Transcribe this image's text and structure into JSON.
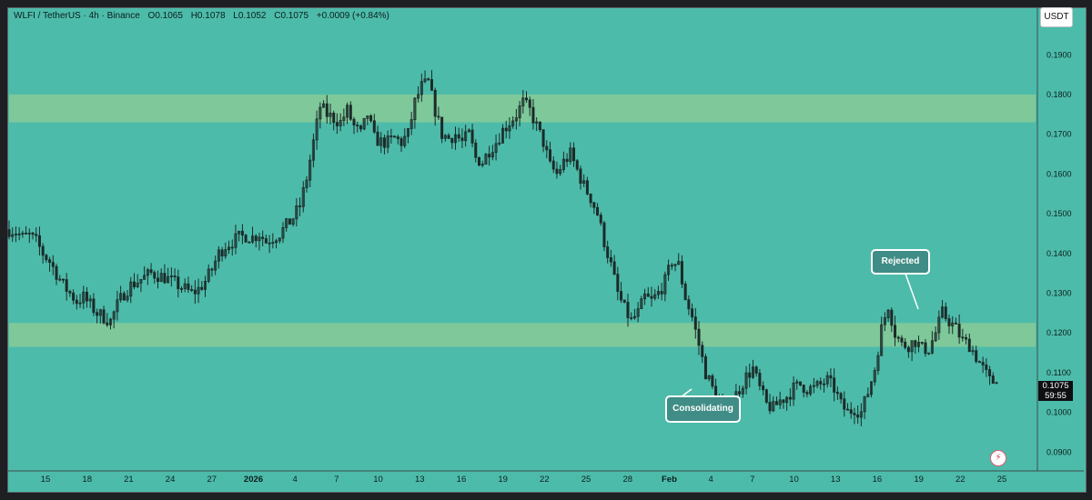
{
  "header": {
    "symbol": "WLFI / TetherUS · 4h · Binance",
    "open": "O0.1065",
    "high": "H0.1078",
    "low": "L0.1052",
    "close": "C0.1075",
    "change": "+0.0009 (+0.84%)"
  },
  "currency_button": "USDT",
  "price_badge": {
    "price": "0.1075",
    "countdown": "59:55"
  },
  "callouts": {
    "rejected": "Rejected",
    "consolidating": "Consolidating"
  },
  "icons": {
    "alert": "lightning-bolt-icon"
  },
  "colors": {
    "background": "#4dbbaa",
    "zone": "#7ec89a",
    "candle": "#1b2a28"
  },
  "chart_data": {
    "type": "candlestick",
    "title": "",
    "xlabel": "",
    "ylabel": "",
    "ylim": [
      0.0855,
      0.2015
    ],
    "y_ticks": [
      "0.1900",
      "0.1800",
      "0.1700",
      "0.1600",
      "0.1500",
      "0.1400",
      "0.1300",
      "0.1200",
      "0.1100",
      "0.1000",
      "0.0900"
    ],
    "x_ticks": [
      "15",
      "18",
      "21",
      "24",
      "27",
      "2026",
      "4",
      "7",
      "10",
      "13",
      "16",
      "19",
      "22",
      "25",
      "28",
      "Feb",
      "4",
      "7",
      "10",
      "13",
      "16",
      "19",
      "22",
      "25"
    ],
    "zones": [
      {
        "low": 0.173,
        "high": 0.18
      },
      {
        "low": 0.1165,
        "high": 0.1225
      }
    ],
    "series": [
      {
        "values": [
          0.146,
          0.1455,
          0.144,
          0.1445,
          0.143,
          0.14,
          0.138,
          0.135,
          0.132,
          0.13,
          0.128,
          0.129,
          0.127,
          0.125,
          0.124,
          0.123,
          0.127,
          0.13,
          0.132,
          0.133,
          0.134,
          0.135,
          0.1345,
          0.134,
          0.133,
          0.132,
          0.131,
          0.13,
          0.131,
          0.133,
          0.136,
          0.14,
          0.142,
          0.143,
          0.144,
          0.1445,
          0.144,
          0.145,
          0.143,
          0.144,
          0.145,
          0.147,
          0.149,
          0.152,
          0.159,
          0.168,
          0.177,
          0.175,
          0.174,
          0.173,
          0.176,
          0.172,
          0.17,
          0.175,
          0.169,
          0.168,
          0.168,
          0.169,
          0.168,
          0.17,
          0.178,
          0.182,
          0.183,
          0.176,
          0.17,
          0.169,
          0.17,
          0.168,
          0.17,
          0.164,
          0.163,
          0.166,
          0.168,
          0.171,
          0.173,
          0.175,
          0.178,
          0.176,
          0.172,
          0.168,
          0.162,
          0.16,
          0.163,
          0.165,
          0.161,
          0.157,
          0.154,
          0.15,
          0.143,
          0.137,
          0.13,
          0.126,
          0.123,
          0.125,
          0.129,
          0.128,
          0.13,
          0.133,
          0.138,
          0.137,
          0.129,
          0.124,
          0.117,
          0.11,
          0.106,
          0.102,
          0.1,
          0.103,
          0.106,
          0.109,
          0.111,
          0.106,
          0.102,
          0.101,
          0.103,
          0.104,
          0.106,
          0.107,
          0.106,
          0.106,
          0.107,
          0.108,
          0.106,
          0.102,
          0.1,
          0.101,
          0.1,
          0.105,
          0.111,
          0.121,
          0.127,
          0.12,
          0.117,
          0.117,
          0.118,
          0.116,
          0.116,
          0.12,
          0.125,
          0.123,
          0.121,
          0.118,
          0.117,
          0.114,
          0.111,
          0.108,
          0.1075
        ]
      }
    ]
  }
}
